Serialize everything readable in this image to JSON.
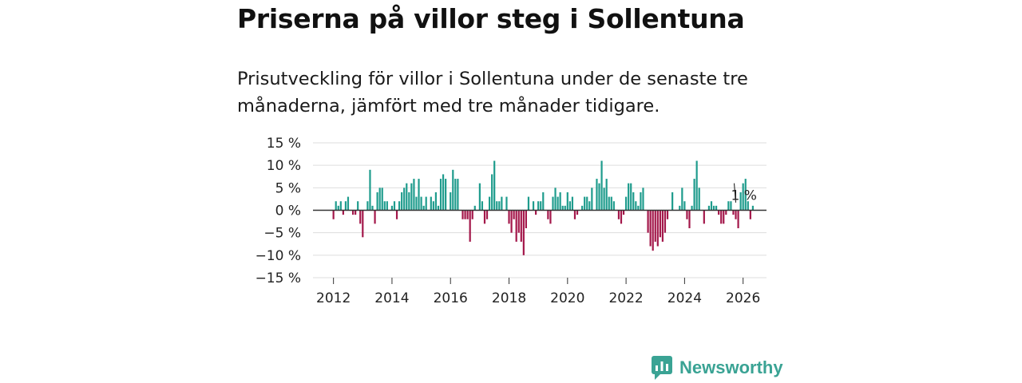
{
  "header": {
    "title": "Priserna på villor steg i Sollentuna",
    "subtitle": "Prisutveckling för villor i Sollentuna under de senaste tre månaderna, jämfört med tre månader tidigare."
  },
  "brand": {
    "name": "Newsworthy",
    "color": "#3aa394"
  },
  "chart_data": {
    "type": "bar",
    "title": "Priserna på villor steg i Sollentuna",
    "ylabel": "",
    "xlabel": "",
    "yticks": [
      "15 %",
      "10 %",
      "5 %",
      "0 %",
      "−5 %",
      "−10 %",
      "−15 %"
    ],
    "ytick_values": [
      15,
      10,
      5,
      0,
      -5,
      -10,
      -15
    ],
    "xticks": [
      "2012",
      "2014",
      "2016",
      "2018",
      "2020",
      "2022",
      "2024",
      "2026"
    ],
    "xtick_values": [
      2012,
      2014,
      2016,
      2018,
      2020,
      2022,
      2024,
      2026
    ],
    "xlim": [
      2011.3,
      2026.8
    ],
    "ylim": [
      -15,
      15
    ],
    "colors": {
      "positive": "#1f9c8d",
      "negative": "#a3174a",
      "zero_line": "#333333",
      "grid": "#dddddd"
    },
    "annotation": {
      "label": "1 %",
      "value": 1,
      "x": 2025.75
    },
    "x_start": 2012.0,
    "step_months": 1,
    "values": [
      -2,
      2,
      1,
      2,
      -1,
      2,
      3,
      0,
      -1,
      -1,
      2,
      -3,
      -6,
      0,
      2,
      9,
      1,
      -3,
      4,
      5,
      5,
      2,
      2,
      0,
      1,
      2,
      -2,
      2,
      4,
      5,
      6,
      4,
      6,
      7,
      3,
      7,
      3,
      1,
      3,
      0,
      3,
      2,
      4,
      1,
      7,
      8,
      7,
      0,
      4,
      9,
      7,
      7,
      0,
      -2,
      -2,
      -2,
      -7,
      -2,
      1,
      0,
      6,
      2,
      -3,
      -2,
      3,
      8,
      11,
      2,
      2,
      3,
      0,
      3,
      -3,
      -5,
      -2,
      -7,
      -5,
      -7,
      -10,
      -4,
      3,
      0,
      2,
      -1,
      2,
      2,
      4,
      0,
      -2,
      -3,
      3,
      5,
      3,
      4,
      1,
      1,
      4,
      2,
      3,
      -2,
      -1,
      0,
      1,
      3,
      3,
      2,
      5,
      0,
      7,
      6,
      11,
      5,
      7,
      3,
      3,
      2,
      0,
      -2,
      -3,
      -1,
      3,
      6,
      6,
      4,
      2,
      1,
      4,
      5,
      0,
      -5,
      -8,
      -9,
      -7,
      -8,
      -6,
      -7,
      -5,
      -2,
      0,
      4,
      0,
      0,
      1,
      5,
      2,
      -2,
      -4,
      1,
      7,
      11,
      5,
      0,
      -3,
      0,
      1,
      2,
      1,
      1,
      -1,
      -3,
      -3,
      -1,
      2,
      2,
      -1,
      -2,
      -4,
      4,
      6,
      7,
      2,
      -2,
      1
    ]
  }
}
